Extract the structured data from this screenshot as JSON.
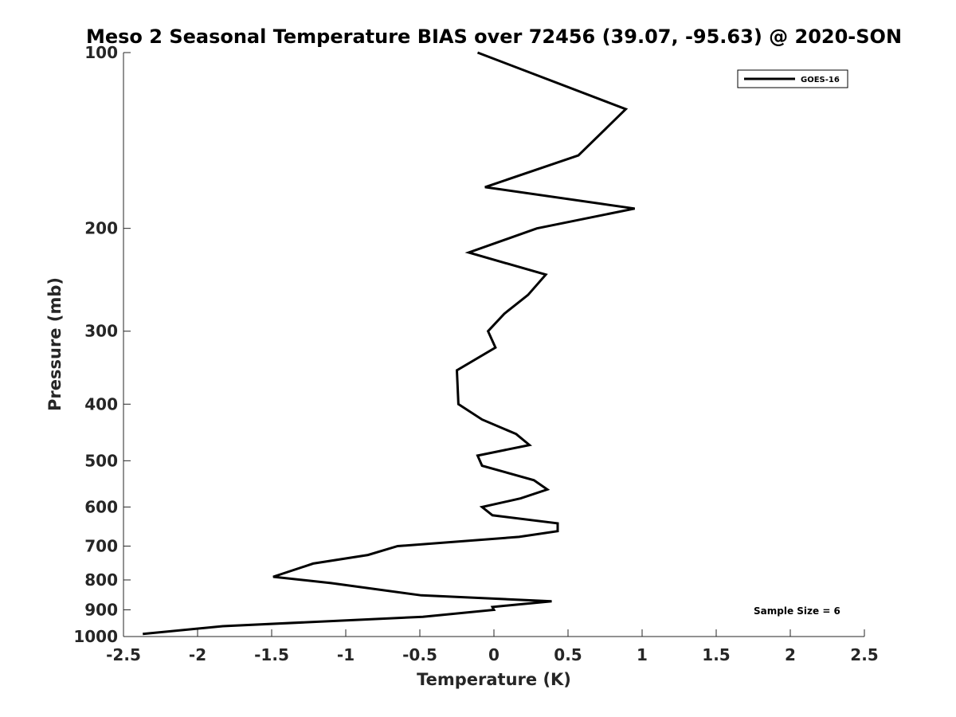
{
  "chart_data": {
    "type": "line",
    "title": "Meso 2 Seasonal Temperature BIAS over 72456 (39.07, -95.63) @ 2020-SON",
    "xlabel": "Temperature (K)",
    "ylabel": "Pressure (mb)",
    "xlim": [
      -2.5,
      2.5
    ],
    "ylim": [
      100,
      1000
    ],
    "y_scale": "log",
    "y_reversed": true,
    "x_ticks": [
      "-2.5",
      "-2",
      "-1.5",
      "-1",
      "-0.5",
      "0",
      "0.5",
      "1",
      "1.5",
      "2",
      "2.5"
    ],
    "y_ticks": [
      "100",
      "200",
      "300",
      "400",
      "500",
      "600",
      "700",
      "800",
      "900",
      "1000"
    ],
    "grid": false,
    "legend_position": "top-right",
    "series": [
      {
        "name": "GOES-16",
        "color": "#000000",
        "x": [
          -0.11,
          0.89,
          0.57,
          -0.06,
          0.95,
          0.29,
          -0.17,
          0.35,
          0.23,
          0.07,
          -0.04,
          0.01,
          -0.25,
          -0.24,
          -0.08,
          0.15,
          0.24,
          -0.11,
          -0.08,
          0.27,
          0.36,
          0.18,
          -0.08,
          -0.01,
          0.43,
          0.43,
          0.17,
          -0.65,
          -0.85,
          -1.22,
          -1.49,
          -1.1,
          -0.49,
          0.39,
          -0.01,
          0.0,
          -0.48,
          -1.83,
          -2.37
        ],
        "y": [
          100,
          125,
          150,
          170,
          185,
          200,
          220,
          240,
          260,
          280,
          300,
          320,
          350,
          400,
          425,
          450,
          470,
          490,
          510,
          540,
          560,
          580,
          600,
          620,
          640,
          660,
          675,
          700,
          725,
          750,
          790,
          810,
          850,
          870,
          890,
          900,
          925,
          960,
          990
        ]
      }
    ],
    "annotations": [
      "Sample Size = 6"
    ]
  }
}
